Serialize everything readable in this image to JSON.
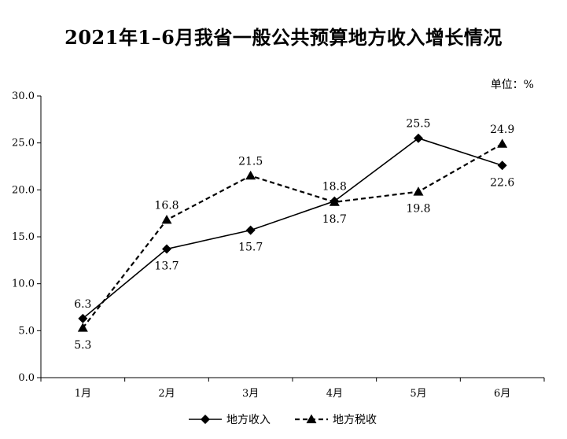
{
  "chart_data": {
    "type": "line",
    "title": "2021年1–6月我省一般公共预算地方收入增长情况",
    "unit": "单位：%",
    "categories": [
      "1月",
      "2月",
      "3月",
      "4月",
      "5月",
      "6月"
    ],
    "ylim": [
      0,
      30
    ],
    "yticks": [
      "0.0",
      "5.0",
      "10.0",
      "15.0",
      "20.0",
      "25.0",
      "30.0"
    ],
    "grid": false,
    "legend_position": "bottom",
    "series": [
      {
        "name": "地方收入",
        "values": [
          6.3,
          13.7,
          15.7,
          18.8,
          25.5,
          22.6
        ],
        "labels": [
          "6.3",
          "13.7",
          "15.7",
          "18.8",
          "25.5",
          "22.6"
        ],
        "label_side": [
          "above",
          "below",
          "below",
          "above",
          "above",
          "below"
        ],
        "marker": "diamond",
        "line": "solid",
        "color": "#000000"
      },
      {
        "name": "地方税收",
        "values": [
          5.3,
          16.8,
          21.5,
          18.7,
          19.8,
          24.9
        ],
        "labels": [
          "5.3",
          "16.8",
          "21.5",
          "18.7",
          "19.8",
          "24.9"
        ],
        "label_side": [
          "below",
          "above",
          "above",
          "below",
          "below",
          "above"
        ],
        "marker": "triangle",
        "line": "dashed",
        "color": "#000000"
      }
    ]
  }
}
